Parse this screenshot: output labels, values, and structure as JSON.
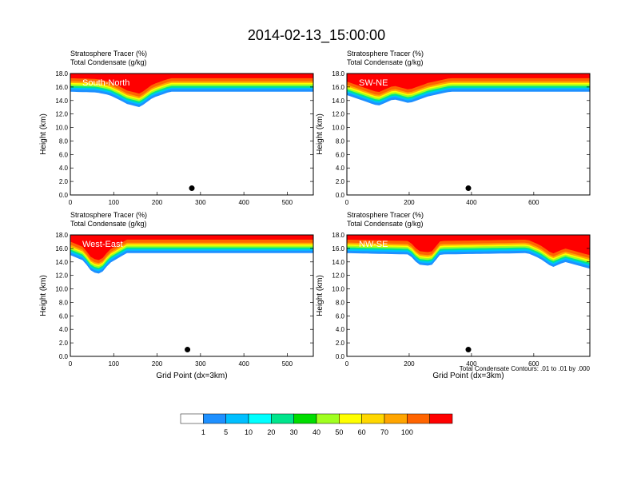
{
  "title": "2014-02-13_15:00:00",
  "colors": {
    "levels": [
      "#ffffff",
      "#1e90ff",
      "#00bfff",
      "#00ffff",
      "#00e58c",
      "#00dd00",
      "#a0ff20",
      "#ffff00",
      "#ffd700",
      "#ffa500",
      "#ff6400",
      "#ff0000"
    ],
    "contour": "#000000"
  },
  "colorbar": {
    "labels": [
      "1",
      "5",
      "10",
      "20",
      "30",
      "40",
      "50",
      "60",
      "70",
      "100"
    ]
  },
  "footnote": "Total Condensate Contours: .01 to .01 by .000",
  "chart_data": [
    {
      "type": "heatmap",
      "header_line1": "Stratosphere Tracer   (%)",
      "header_line2": "Total Condensate   (g/kg)",
      "panel_label": "South-North",
      "ylabel": "Height (km)",
      "xlabel": "",
      "ylim": [
        0,
        18
      ],
      "xlim": [
        0,
        560
      ],
      "x_ticks": [
        "0",
        "100",
        "200",
        "300",
        "400",
        "500"
      ],
      "y_ticks": [
        "0.0",
        "2.0",
        "4.0",
        "6.0",
        "8.0",
        "10.0",
        "12.0",
        "14.0",
        "16.0",
        "18.0"
      ],
      "tracer_floor_km": [
        [
          0,
          15.3
        ],
        [
          60,
          15.2
        ],
        [
          90,
          14.8
        ],
        [
          110,
          14.2
        ],
        [
          130,
          13.5
        ],
        [
          160,
          13.0
        ],
        [
          190,
          14.4
        ],
        [
          230,
          15.3
        ],
        [
          560,
          15.3
        ]
      ],
      "marker": {
        "x": 280,
        "y": 1.0
      }
    },
    {
      "type": "heatmap",
      "header_line1": "Stratosphere Tracer   (%)",
      "header_line2": "Total Condensate   (g/kg)",
      "panel_label": "SW-NE",
      "ylabel": "Height (km)",
      "xlabel": "",
      "ylim": [
        0,
        18
      ],
      "xlim": [
        0,
        780
      ],
      "x_ticks": [
        "0",
        "200",
        "400",
        "600"
      ],
      "y_ticks": [
        "0.0",
        "2.0",
        "4.0",
        "6.0",
        "8.0",
        "10.0",
        "12.0",
        "14.0",
        "16.0",
        "18.0"
      ],
      "tracer_floor_km": [
        [
          0,
          14.8
        ],
        [
          50,
          14.0
        ],
        [
          100,
          13.2
        ],
        [
          150,
          14.2
        ],
        [
          200,
          13.6
        ],
        [
          260,
          14.6
        ],
        [
          330,
          15.3
        ],
        [
          780,
          15.3
        ]
      ],
      "marker": {
        "x": 390,
        "y": 1.0
      }
    },
    {
      "type": "heatmap",
      "header_line1": "Stratosphere Tracer   (%)",
      "header_line2": "Total Condensate   (g/kg)",
      "panel_label": "West-East",
      "ylabel": "Height (km)",
      "xlabel": "Grid Point (dx=3km)",
      "ylim": [
        0,
        18
      ],
      "xlim": [
        0,
        560
      ],
      "x_ticks": [
        "0",
        "100",
        "200",
        "300",
        "400",
        "500"
      ],
      "y_ticks": [
        "0.0",
        "2.0",
        "4.0",
        "6.0",
        "8.0",
        "10.0",
        "12.0",
        "14.0",
        "16.0",
        "18.0"
      ],
      "tracer_floor_km": [
        [
          0,
          15.0
        ],
        [
          30,
          14.2
        ],
        [
          50,
          12.5
        ],
        [
          70,
          12.2
        ],
        [
          90,
          13.8
        ],
        [
          130,
          15.3
        ],
        [
          560,
          15.3
        ]
      ],
      "marker": {
        "x": 270,
        "y": 1.0
      }
    },
    {
      "type": "heatmap",
      "header_line1": "Stratosphere Tracer   (%)",
      "header_line2": "Total Condensate   (g/kg)",
      "panel_label": "NW-SE",
      "ylabel": "Height (km)",
      "xlabel": "Grid Point (dx=3km)",
      "ylim": [
        0,
        18
      ],
      "xlim": [
        0,
        780
      ],
      "x_ticks": [
        "0",
        "200",
        "400",
        "600"
      ],
      "y_ticks": [
        "0.0",
        "2.0",
        "4.0",
        "6.0",
        "8.0",
        "10.0",
        "12.0",
        "14.0",
        "16.0",
        "18.0"
      ],
      "tracer_floor_km": [
        [
          0,
          15.3
        ],
        [
          200,
          15.1
        ],
        [
          230,
          13.6
        ],
        [
          270,
          13.4
        ],
        [
          300,
          15.1
        ],
        [
          580,
          15.3
        ],
        [
          620,
          14.5
        ],
        [
          660,
          13.2
        ],
        [
          700,
          14.0
        ],
        [
          780,
          13.0
        ]
      ],
      "marker": {
        "x": 390,
        "y": 1.0
      }
    }
  ]
}
